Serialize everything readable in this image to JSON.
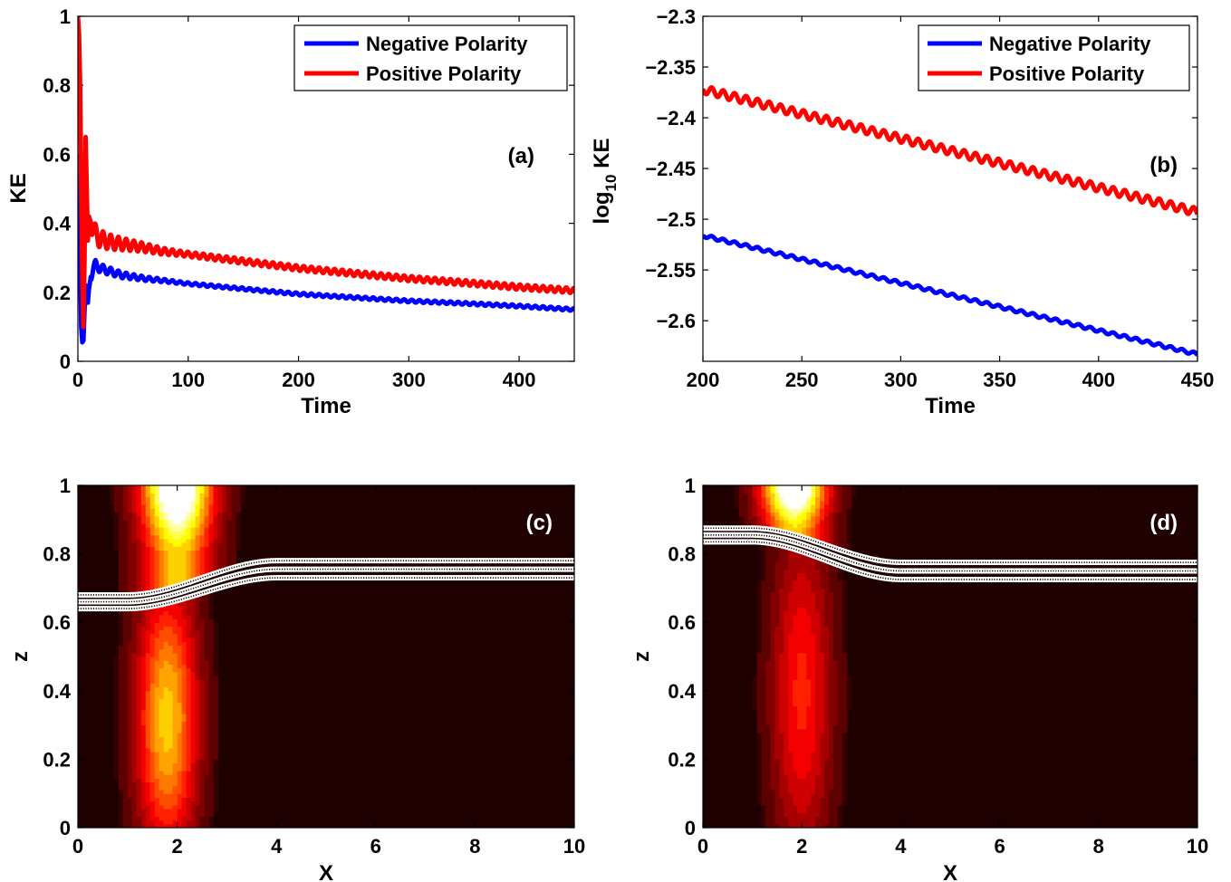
{
  "chart_data": [
    {
      "id": "a",
      "type": "line",
      "panel_label": "(a)",
      "xlabel": "Time",
      "ylabel": "KE",
      "xlim": [
        0,
        450
      ],
      "ylim": [
        0,
        1
      ],
      "xticks": [
        0,
        100,
        200,
        300,
        400
      ],
      "yticks": [
        0,
        0.2,
        0.4,
        0.6,
        0.8,
        1
      ],
      "legend_position": "top-right",
      "series": [
        {
          "name": "Negative Polarity",
          "color": "#0000ff",
          "x": [
            0,
            1,
            2,
            3,
            4,
            5,
            6,
            7,
            8,
            9,
            10,
            12,
            14,
            16,
            18,
            20,
            25,
            30,
            40,
            50,
            60,
            75,
            100,
            150,
            200,
            250,
            300,
            350,
            400,
            450
          ],
          "y": [
            0.6,
            0.45,
            0.3,
            0.1,
            0.055,
            0.06,
            0.15,
            0.22,
            0.2,
            0.17,
            0.21,
            0.25,
            0.27,
            0.28,
            0.275,
            0.27,
            0.265,
            0.26,
            0.25,
            0.245,
            0.24,
            0.235,
            0.225,
            0.21,
            0.195,
            0.185,
            0.175,
            0.168,
            0.16,
            0.15
          ],
          "oscillation": 0.015
        },
        {
          "name": "Positive Polarity",
          "color": "#ff0000",
          "x": [
            0,
            1,
            2,
            3,
            4,
            5,
            6,
            7,
            8,
            9,
            10,
            12,
            14,
            16,
            18,
            20,
            25,
            30,
            40,
            50,
            60,
            75,
            100,
            150,
            200,
            250,
            300,
            350,
            400,
            450
          ],
          "y": [
            1.0,
            0.95,
            0.8,
            0.5,
            0.25,
            0.1,
            0.3,
            0.65,
            0.5,
            0.35,
            0.42,
            0.4,
            0.38,
            0.37,
            0.36,
            0.355,
            0.35,
            0.345,
            0.34,
            0.335,
            0.33,
            0.32,
            0.31,
            0.29,
            0.27,
            0.255,
            0.24,
            0.228,
            0.215,
            0.205
          ],
          "oscillation": 0.03
        }
      ]
    },
    {
      "id": "b",
      "type": "line",
      "panel_label": "(b)",
      "xlabel": "Time",
      "ylabel": "log",
      "ylabel_sub": "10",
      "ylabel_tail": " KE",
      "xlim": [
        200,
        450
      ],
      "ylim": [
        -2.64,
        -2.3
      ],
      "xticks": [
        200,
        250,
        300,
        350,
        400,
        450
      ],
      "yticks": [
        -2.3,
        -2.35,
        -2.4,
        -2.45,
        -2.5,
        -2.55,
        -2.6
      ],
      "ytick_labels": [
        "−2.3",
        "−2.35",
        "−2.4",
        "−2.45",
        "−2.5",
        "−2.55",
        "−2.6"
      ],
      "legend_position": "top-right",
      "series": [
        {
          "name": "Negative Polarity",
          "color": "#0000ff",
          "x": [
            200,
            450
          ],
          "y": [
            -2.516,
            -2.633
          ],
          "oscillation": 0.0015,
          "period": 5.8
        },
        {
          "name": "Positive Polarity",
          "color": "#ff0000",
          "x": [
            200,
            450
          ],
          "y": [
            -2.372,
            -2.493
          ],
          "oscillation": 0.004,
          "period": 5.8
        }
      ]
    },
    {
      "id": "c",
      "type": "heatmap",
      "panel_label": "(c)",
      "xlabel": "X",
      "ylabel": "z",
      "xlim": [
        0,
        10
      ],
      "ylim": [
        0,
        1
      ],
      "xticks": [
        0,
        2,
        4,
        6,
        8,
        10
      ],
      "yticks": [
        0,
        0.2,
        0.4,
        0.6,
        0.8,
        1
      ],
      "colormap": "hot",
      "upper_column": {
        "x_center": 2.0,
        "half_width": 1.1,
        "z_from": 0.78,
        "z_to": 1.0,
        "peak": 1.0
      },
      "lower_column": {
        "x_center": 1.8,
        "half_width": 1.0,
        "z_from": 0.0,
        "z_to": 0.64,
        "peak": 0.75
      },
      "field_lines": {
        "left_z": [
          0.68,
          0.66,
          0.64
        ],
        "right_z": [
          0.78,
          0.755,
          0.73
        ],
        "transition_x": [
          1.0,
          4.0
        ]
      }
    },
    {
      "id": "d",
      "type": "heatmap",
      "panel_label": "(d)",
      "xlabel": "X",
      "ylabel": "z",
      "xlim": [
        0,
        10
      ],
      "ylim": [
        0,
        1
      ],
      "xticks": [
        0,
        2,
        4,
        6,
        8,
        10
      ],
      "yticks": [
        0,
        0.2,
        0.4,
        0.6,
        0.8,
        1
      ],
      "colormap": "hot",
      "upper_column": {
        "x_center": 1.85,
        "half_width": 1.0,
        "z_from": 0.86,
        "z_to": 1.0,
        "peak": 1.0
      },
      "lower_column": {
        "x_center": 2.0,
        "half_width": 1.0,
        "z_from": 0.0,
        "z_to": 0.79,
        "peak": 0.45
      },
      "field_lines": {
        "left_z": [
          0.875,
          0.855,
          0.835
        ],
        "right_z": [
          0.775,
          0.75,
          0.725
        ],
        "transition_x": [
          1.0,
          4.0
        ]
      }
    }
  ]
}
